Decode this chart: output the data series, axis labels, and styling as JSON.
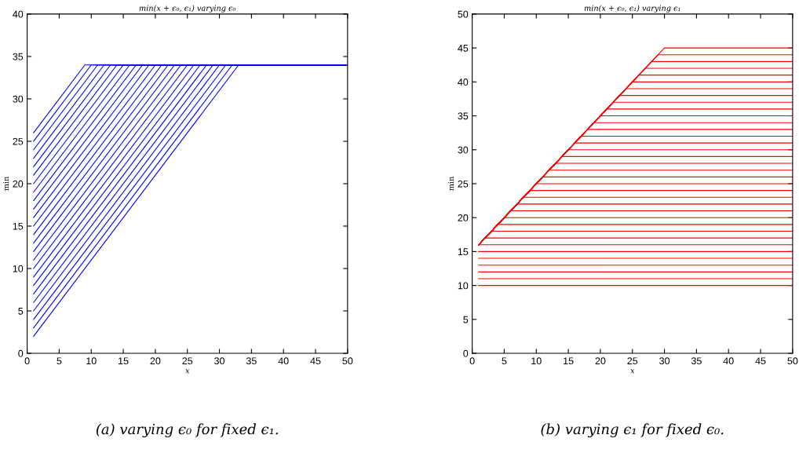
{
  "chart_data": [
    {
      "type": "line",
      "title": "min(x + ϵ₀, ϵ₁) varying ϵ₀",
      "xlabel": "x",
      "ylabel": "min",
      "xlim": [
        0,
        50
      ],
      "xticks": [
        0,
        5,
        10,
        15,
        20,
        25,
        30,
        35,
        40,
        45,
        50
      ],
      "ylim": [
        0,
        40
      ],
      "yticks": [
        0,
        5,
        10,
        15,
        20,
        25,
        30,
        35,
        40
      ],
      "grid": false,
      "legend": false,
      "annotations": [
        "(a) varying ϵ₀ for fixed ϵ₁."
      ],
      "series": [
        {
          "color": "#0000ff",
          "x": [
            1,
            33,
            50
          ],
          "values": [
            2,
            34,
            34
          ]
        },
        {
          "color": "#0000ff",
          "x": [
            1,
            32,
            50
          ],
          "values": [
            3,
            34,
            34
          ]
        },
        {
          "color": "#0000ff",
          "x": [
            1,
            31,
            50
          ],
          "values": [
            4,
            34,
            34
          ]
        },
        {
          "color": "#0000ff",
          "x": [
            1,
            30,
            50
          ],
          "values": [
            5,
            34,
            34
          ]
        },
        {
          "color": "#0000ff",
          "x": [
            1,
            29,
            50
          ],
          "values": [
            6,
            34,
            34
          ]
        },
        {
          "color": "#0000ff",
          "x": [
            1,
            28,
            50
          ],
          "values": [
            7,
            34,
            34
          ]
        },
        {
          "color": "#0000ff",
          "x": [
            1,
            27,
            50
          ],
          "values": [
            8,
            34,
            34
          ]
        },
        {
          "color": "#0000ff",
          "x": [
            1,
            26,
            50
          ],
          "values": [
            9,
            34,
            34
          ]
        },
        {
          "color": "#0000ff",
          "x": [
            1,
            25,
            50
          ],
          "values": [
            10,
            34,
            34
          ]
        },
        {
          "color": "#0000ff",
          "x": [
            1,
            24,
            50
          ],
          "values": [
            11,
            34,
            34
          ]
        },
        {
          "color": "#0000ff",
          "x": [
            1,
            23,
            50
          ],
          "values": [
            12,
            34,
            34
          ]
        },
        {
          "color": "#0000ff",
          "x": [
            1,
            22,
            50
          ],
          "values": [
            13,
            34,
            34
          ]
        },
        {
          "color": "#0000ff",
          "x": [
            1,
            21,
            50
          ],
          "values": [
            14,
            34,
            34
          ]
        },
        {
          "color": "#0000ff",
          "x": [
            1,
            20,
            50
          ],
          "values": [
            15,
            34,
            34
          ]
        },
        {
          "color": "#0000ff",
          "x": [
            1,
            19,
            50
          ],
          "values": [
            16,
            34,
            34
          ]
        },
        {
          "color": "#0000ff",
          "x": [
            1,
            18,
            50
          ],
          "values": [
            17,
            34,
            34
          ]
        },
        {
          "color": "#0000ff",
          "x": [
            1,
            17,
            50
          ],
          "values": [
            18,
            34,
            34
          ]
        },
        {
          "color": "#0000ff",
          "x": [
            1,
            16,
            50
          ],
          "values": [
            19,
            34,
            34
          ]
        },
        {
          "color": "#0000ff",
          "x": [
            1,
            15,
            50
          ],
          "values": [
            20,
            34,
            34
          ]
        },
        {
          "color": "#0000ff",
          "x": [
            1,
            14,
            50
          ],
          "values": [
            21,
            34,
            34
          ]
        },
        {
          "color": "#0000ff",
          "x": [
            1,
            13,
            50
          ],
          "values": [
            22,
            34,
            34
          ]
        },
        {
          "color": "#0000ff",
          "x": [
            1,
            12,
            50
          ],
          "values": [
            23,
            34,
            34
          ]
        },
        {
          "color": "#0000ff",
          "x": [
            1,
            11,
            50
          ],
          "values": [
            24,
            34,
            34
          ]
        },
        {
          "color": "#0000ff",
          "x": [
            1,
            10,
            50
          ],
          "values": [
            25,
            34,
            34
          ]
        },
        {
          "color": "#0000ff",
          "x": [
            1,
            9,
            50
          ],
          "values": [
            26,
            34,
            34
          ]
        }
      ]
    },
    {
      "type": "line",
      "title": "min(x + ϵ₀, ϵ₁) varying ϵ₁",
      "xlabel": "x",
      "ylabel": "min",
      "xlim": [
        0,
        50
      ],
      "xticks": [
        0,
        5,
        10,
        15,
        20,
        25,
        30,
        35,
        40,
        45,
        50
      ],
      "ylim": [
        0,
        50
      ],
      "yticks": [
        0,
        5,
        10,
        15,
        20,
        25,
        30,
        35,
        40,
        45,
        50
      ],
      "grid": false,
      "legend": false,
      "annotations": [
        "(b) varying ϵ₁ for fixed ϵ₀."
      ],
      "series": [
        {
          "color": "#ff0000",
          "x": [
            1,
            50
          ],
          "values": [
            10,
            10
          ]
        },
        {
          "color": "#ff0000",
          "x": [
            1,
            50
          ],
          "values": [
            11,
            11
          ]
        },
        {
          "color": "#ff0000",
          "x": [
            1,
            50
          ],
          "values": [
            12,
            12
          ]
        },
        {
          "color": "#ff0000",
          "x": [
            1,
            50
          ],
          "values": [
            13,
            13
          ]
        },
        {
          "color": "#ff0000",
          "x": [
            1,
            50
          ],
          "values": [
            14,
            14
          ]
        },
        {
          "color": "#ff0000",
          "x": [
            1,
            50
          ],
          "values": [
            15,
            15
          ]
        },
        {
          "color": "#ff0000",
          "x": [
            1,
            50
          ],
          "values": [
            16,
            16
          ]
        },
        {
          "color": "#ff0000",
          "x": [
            1,
            2,
            50
          ],
          "values": [
            16,
            17,
            17
          ]
        },
        {
          "color": "#ff0000",
          "x": [
            1,
            3,
            50
          ],
          "values": [
            16,
            18,
            18
          ]
        },
        {
          "color": "#ff0000",
          "x": [
            1,
            4,
            50
          ],
          "values": [
            16,
            19,
            19
          ]
        },
        {
          "color": "#ff0000",
          "x": [
            1,
            5,
            50
          ],
          "values": [
            16,
            20,
            20
          ]
        },
        {
          "color": "#ff0000",
          "x": [
            1,
            6,
            50
          ],
          "values": [
            16,
            21,
            21
          ]
        },
        {
          "color": "#ff0000",
          "x": [
            1,
            7,
            50
          ],
          "values": [
            16,
            22,
            22
          ]
        },
        {
          "color": "#ff0000",
          "x": [
            1,
            8,
            50
          ],
          "values": [
            16,
            23,
            23
          ]
        },
        {
          "color": "#ff0000",
          "x": [
            1,
            9,
            50
          ],
          "values": [
            16,
            24,
            24
          ]
        },
        {
          "color": "#ff0000",
          "x": [
            1,
            10,
            50
          ],
          "values": [
            16,
            25,
            25
          ]
        },
        {
          "color": "#ff0000",
          "x": [
            1,
            11,
            50
          ],
          "values": [
            16,
            26,
            26
          ]
        },
        {
          "color": "#ff0000",
          "x": [
            1,
            12,
            50
          ],
          "values": [
            16,
            27,
            27
          ]
        },
        {
          "color": "#ff0000",
          "x": [
            1,
            13,
            50
          ],
          "values": [
            16,
            28,
            28
          ]
        },
        {
          "color": "#ff0000",
          "x": [
            1,
            14,
            50
          ],
          "values": [
            16,
            29,
            29
          ]
        },
        {
          "color": "#ff0000",
          "x": [
            1,
            15,
            50
          ],
          "values": [
            16,
            30,
            30
          ]
        },
        {
          "color": "#ff0000",
          "x": [
            1,
            16,
            50
          ],
          "values": [
            16,
            31,
            31
          ]
        },
        {
          "color": "#ff0000",
          "x": [
            1,
            17,
            50
          ],
          "values": [
            16,
            32,
            32
          ]
        },
        {
          "color": "#ff0000",
          "x": [
            1,
            18,
            50
          ],
          "values": [
            16,
            33,
            33
          ]
        },
        {
          "color": "#ff0000",
          "x": [
            1,
            19,
            50
          ],
          "values": [
            16,
            34,
            34
          ]
        },
        {
          "color": "#ff0000",
          "x": [
            1,
            20,
            50
          ],
          "values": [
            16,
            35,
            35
          ]
        },
        {
          "color": "#ff0000",
          "x": [
            1,
            21,
            50
          ],
          "values": [
            16,
            36,
            36
          ]
        },
        {
          "color": "#ff0000",
          "x": [
            1,
            22,
            50
          ],
          "values": [
            16,
            37,
            37
          ]
        },
        {
          "color": "#ff0000",
          "x": [
            1,
            23,
            50
          ],
          "values": [
            16,
            38,
            38
          ]
        },
        {
          "color": "#ff0000",
          "x": [
            1,
            24,
            50
          ],
          "values": [
            16,
            39,
            39
          ]
        },
        {
          "color": "#ff0000",
          "x": [
            1,
            25,
            50
          ],
          "values": [
            16,
            40,
            40
          ]
        },
        {
          "color": "#ff0000",
          "x": [
            1,
            26,
            50
          ],
          "values": [
            16,
            41,
            41
          ]
        },
        {
          "color": "#ff0000",
          "x": [
            1,
            27,
            50
          ],
          "values": [
            16,
            42,
            42
          ]
        },
        {
          "color": "#ff0000",
          "x": [
            1,
            28,
            50
          ],
          "values": [
            16,
            43,
            43
          ]
        },
        {
          "color": "#ff0000",
          "x": [
            1,
            29,
            50
          ],
          "values": [
            16,
            44,
            44
          ]
        },
        {
          "color": "#ff0000",
          "x": [
            1,
            30,
            50
          ],
          "values": [
            16,
            45,
            45
          ]
        }
      ]
    }
  ]
}
